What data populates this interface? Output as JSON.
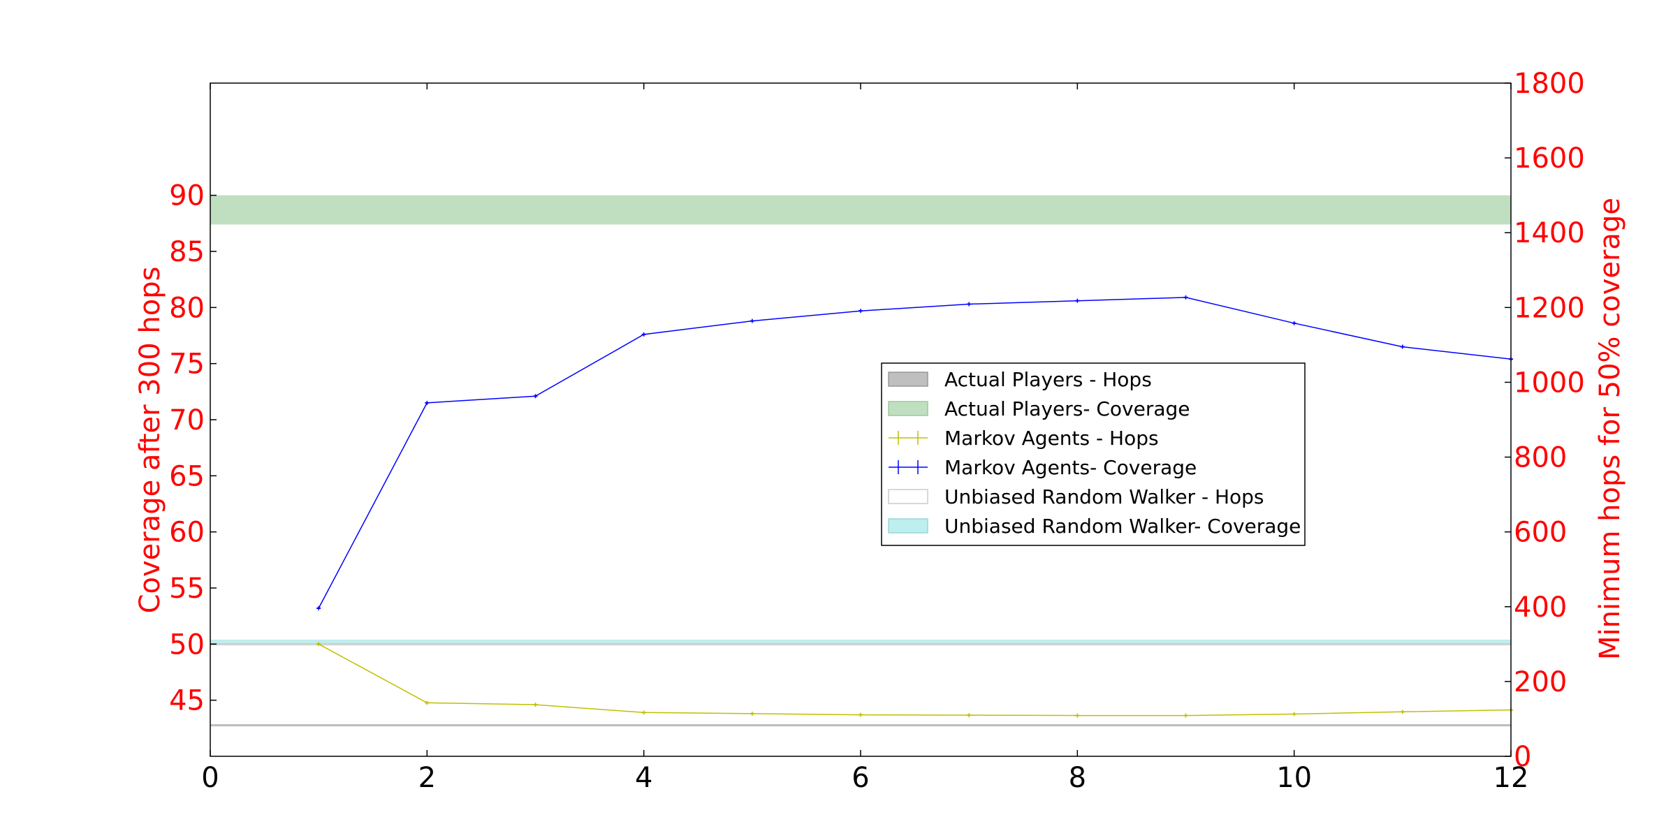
{
  "chart_data": {
    "type": "line",
    "x_axis": {
      "range": [
        0,
        12
      ],
      "ticks": [
        0,
        2,
        4,
        6,
        8,
        10,
        12
      ],
      "tick_labels": [
        "0",
        "2",
        "4",
        "6",
        "8",
        "10",
        "12"
      ],
      "label": ""
    },
    "y_left": {
      "label": "Coverage after 300 hops",
      "range": [
        40,
        100
      ],
      "ticks": [
        45,
        50,
        55,
        60,
        65,
        70,
        75,
        80,
        85,
        90
      ],
      "tick_labels": [
        "45",
        "50",
        "55",
        "60",
        "65",
        "70",
        "75",
        "80",
        "85",
        "90"
      ],
      "color": "#ff0000"
    },
    "y_right": {
      "label": "Minimum hops for 50% coverage",
      "range": [
        0,
        1800
      ],
      "ticks": [
        0,
        200,
        400,
        600,
        800,
        1000,
        1200,
        1400,
        1600,
        1800
      ],
      "tick_labels": [
        "0",
        "200",
        "400",
        "600",
        "800",
        "1000",
        "1200",
        "1400",
        "1600",
        "1800"
      ],
      "color": "#ff0000"
    },
    "series": [
      {
        "name": "Markov Agents - Hops",
        "axis": "right",
        "color": "#bfbf00",
        "x": [
          1,
          2,
          3,
          4,
          5,
          6,
          7,
          8,
          9,
          10,
          11,
          12
        ],
        "y": [
          300,
          143,
          138,
          117,
          114,
          111,
          110,
          109,
          109,
          113,
          119,
          124
        ]
      },
      {
        "name": "Markov Agents- Coverage",
        "axis": "left",
        "color": "#0000ff",
        "x": [
          1,
          2,
          3,
          4,
          5,
          6,
          7,
          8,
          9,
          10,
          11,
          12
        ],
        "y": [
          53.2,
          71.5,
          72.1,
          77.6,
          78.8,
          79.7,
          80.3,
          80.6,
          80.9,
          78.6,
          76.5,
          75.4
        ]
      }
    ],
    "bands": [
      {
        "name": "Actual Players - Hops",
        "axis": "right",
        "y_range": [
          80,
          86
        ],
        "color": "#bfbfbf"
      },
      {
        "name": "Actual Players- Coverage",
        "axis": "left",
        "y_range": [
          87.4,
          90
        ],
        "color": "#c0dfc0"
      },
      {
        "name": "Unbiased Random Walker - Hops",
        "axis": "right",
        "y_range": [
          298,
          302
        ],
        "color": "#e6e6e6"
      },
      {
        "name": "Unbiased Random Walker- Coverage",
        "axis": "left",
        "y_range": [
          50.1,
          50.4
        ],
        "color": "#bfeeee"
      }
    ],
    "legend": {
      "placement": "center-right",
      "entries": [
        {
          "label": "Actual Players - Hops",
          "kind": "patch",
          "fill": "#bfbfbf",
          "edge": "#999999"
        },
        {
          "label": "Actual Players- Coverage",
          "kind": "patch",
          "fill": "#c0dfc0",
          "edge": "#9cc89c"
        },
        {
          "label": "Markov Agents - Hops",
          "kind": "errorbar",
          "color": "#bfbf00"
        },
        {
          "label": "Markov Agents- Coverage",
          "kind": "errorbar",
          "color": "#0000ff"
        },
        {
          "label": "Unbiased Random Walker - Hops",
          "kind": "patch",
          "fill": "#ffffff",
          "edge": "#cccccc"
        },
        {
          "label": "Unbiased Random Walker- Coverage",
          "kind": "patch",
          "fill": "#bfeeee",
          "edge": "#99d6d6"
        }
      ]
    }
  }
}
